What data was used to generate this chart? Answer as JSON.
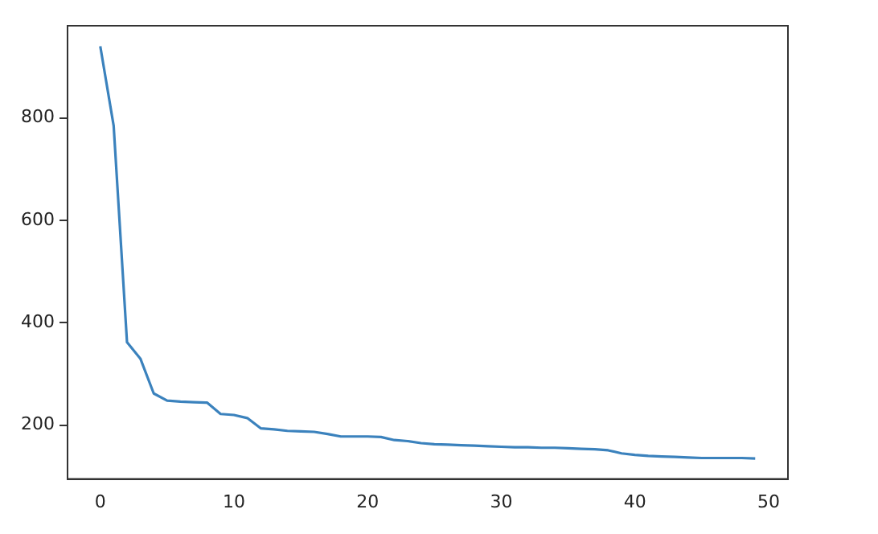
{
  "chart_data": {
    "type": "line",
    "x": [
      0,
      1,
      2,
      3,
      4,
      5,
      6,
      7,
      8,
      9,
      10,
      11,
      12,
      13,
      14,
      15,
      16,
      17,
      18,
      19,
      20,
      21,
      22,
      23,
      24,
      25,
      26,
      27,
      28,
      29,
      30,
      31,
      32,
      33,
      34,
      35,
      36,
      37,
      38,
      39,
      40,
      41,
      42,
      43,
      44,
      45,
      46,
      47,
      48,
      49
    ],
    "series": [
      {
        "color": "#3b82bd",
        "values": [
          940,
          785,
          362,
          330,
          262,
          248,
          246,
          245,
          244,
          222,
          220,
          214,
          194,
          192,
          189,
          188,
          187,
          183,
          178,
          178,
          178,
          177,
          171,
          169,
          165,
          163,
          162,
          161,
          160,
          159,
          158,
          157,
          157,
          156,
          156,
          155,
          154,
          153,
          151,
          145,
          142,
          140,
          139,
          138,
          137,
          136,
          136,
          136,
          136,
          135
        ]
      }
    ],
    "xlim": [
      -2.45,
      51.45
    ],
    "xticks": [
      0,
      10,
      20,
      30,
      40,
      50
    ],
    "ylim": [
      95,
      980
    ],
    "yticks": [
      200,
      400,
      600,
      800
    ],
    "grid": false,
    "legend": false,
    "marker": "none",
    "line_style": "solid"
  }
}
